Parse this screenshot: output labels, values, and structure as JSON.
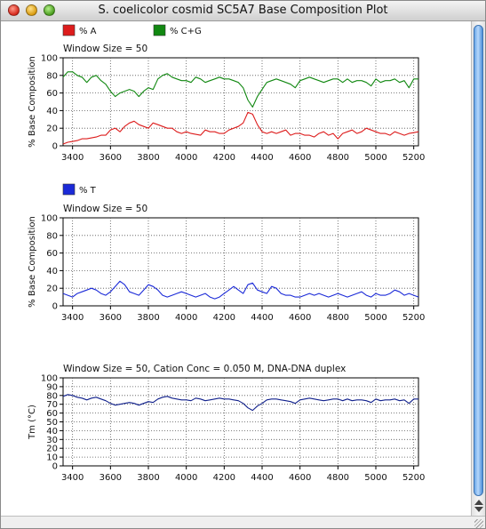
{
  "window": {
    "title": "S. coelicolor cosmid SC5A7 Base Composition Plot"
  },
  "colors": {
    "a": "#dd1c1c",
    "cg": "#118811",
    "t": "#1b2ad8",
    "tm": "#10208c"
  },
  "chart_data": [
    {
      "type": "line",
      "title": "Window Size = 50",
      "ylabel": "% Base Composition",
      "xlim": [
        3350,
        5225
      ],
      "ylim": [
        0,
        100
      ],
      "xticks": [
        3400,
        3600,
        3800,
        4000,
        4200,
        4400,
        4600,
        4800,
        5000,
        5200
      ],
      "yticks": [
        0,
        20,
        40,
        60,
        80,
        100
      ],
      "grid": true,
      "legend": [
        {
          "label": "% A",
          "color": "#dd1c1c"
        },
        {
          "label": "% C+G",
          "color": "#118811"
        }
      ],
      "x": [
        3350,
        3375,
        3400,
        3425,
        3450,
        3475,
        3500,
        3525,
        3550,
        3575,
        3600,
        3625,
        3650,
        3675,
        3700,
        3725,
        3750,
        3775,
        3800,
        3825,
        3850,
        3875,
        3900,
        3925,
        3950,
        3975,
        4000,
        4025,
        4050,
        4075,
        4100,
        4125,
        4150,
        4175,
        4200,
        4225,
        4250,
        4275,
        4300,
        4325,
        4350,
        4375,
        4400,
        4425,
        4450,
        4475,
        4500,
        4525,
        4550,
        4575,
        4600,
        4625,
        4650,
        4675,
        4700,
        4725,
        4750,
        4775,
        4800,
        4825,
        4850,
        4875,
        4900,
        4925,
        4950,
        4975,
        5000,
        5025,
        5050,
        5075,
        5100,
        5125,
        5150,
        5175,
        5200,
        5225
      ],
      "series": [
        {
          "name": "% A",
          "color": "#dd1c1c",
          "values": [
            2,
            4,
            5,
            6,
            8,
            8,
            9,
            10,
            12,
            12,
            18,
            20,
            16,
            22,
            26,
            28,
            24,
            22,
            20,
            26,
            24,
            22,
            20,
            20,
            16,
            14,
            16,
            14,
            13,
            12,
            18,
            16,
            16,
            14,
            14,
            18,
            20,
            22,
            26,
            38,
            36,
            24,
            16,
            14,
            16,
            14,
            16,
            18,
            12,
            14,
            14,
            12,
            12,
            10,
            14,
            16,
            12,
            14,
            8,
            14,
            16,
            18,
            14,
            16,
            20,
            18,
            16,
            14,
            14,
            12,
            16,
            14,
            12,
            14,
            15,
            16
          ]
        },
        {
          "name": "% C+G",
          "color": "#118811",
          "values": [
            78,
            84,
            84,
            80,
            78,
            72,
            78,
            80,
            74,
            70,
            62,
            56,
            60,
            62,
            64,
            62,
            56,
            62,
            66,
            64,
            76,
            80,
            82,
            78,
            76,
            74,
            74,
            72,
            78,
            76,
            72,
            74,
            76,
            78,
            76,
            76,
            74,
            72,
            66,
            52,
            44,
            56,
            64,
            72,
            74,
            76,
            74,
            72,
            70,
            66,
            74,
            76,
            78,
            76,
            74,
            72,
            74,
            76,
            76,
            72,
            76,
            72,
            74,
            74,
            72,
            68,
            76,
            72,
            74,
            74,
            76,
            72,
            74,
            66,
            76,
            76
          ]
        }
      ]
    },
    {
      "type": "line",
      "title": "Window Size = 50",
      "ylabel": "% Base Composition",
      "xlim": [
        3350,
        5225
      ],
      "ylim": [
        0,
        100
      ],
      "xticks": [
        3400,
        3600,
        3800,
        4000,
        4200,
        4400,
        4600,
        4800,
        5000,
        5200
      ],
      "yticks": [
        0,
        20,
        40,
        60,
        80,
        100
      ],
      "grid": true,
      "legend": [
        {
          "label": "% T",
          "color": "#1b2ad8"
        }
      ],
      "x": [
        3350,
        3375,
        3400,
        3425,
        3450,
        3475,
        3500,
        3525,
        3550,
        3575,
        3600,
        3625,
        3650,
        3675,
        3700,
        3725,
        3750,
        3775,
        3800,
        3825,
        3850,
        3875,
        3900,
        3925,
        3950,
        3975,
        4000,
        4025,
        4050,
        4075,
        4100,
        4125,
        4150,
        4175,
        4200,
        4225,
        4250,
        4275,
        4300,
        4325,
        4350,
        4375,
        4400,
        4425,
        4450,
        4475,
        4500,
        4525,
        4550,
        4575,
        4600,
        4625,
        4650,
        4675,
        4700,
        4725,
        4750,
        4775,
        4800,
        4825,
        4850,
        4875,
        4900,
        4925,
        4950,
        4975,
        5000,
        5025,
        5050,
        5075,
        5100,
        5125,
        5150,
        5175,
        5200,
        5225
      ],
      "series": [
        {
          "name": "% T",
          "color": "#1b2ad8",
          "values": [
            14,
            12,
            10,
            14,
            16,
            18,
            20,
            18,
            14,
            12,
            16,
            22,
            28,
            24,
            16,
            14,
            12,
            18,
            24,
            22,
            18,
            12,
            10,
            12,
            14,
            16,
            14,
            12,
            10,
            12,
            14,
            10,
            8,
            10,
            14,
            18,
            22,
            18,
            14,
            24,
            26,
            18,
            16,
            14,
            22,
            20,
            14,
            12,
            12,
            10,
            10,
            12,
            14,
            12,
            14,
            12,
            10,
            12,
            14,
            12,
            10,
            12,
            14,
            16,
            12,
            10,
            14,
            12,
            12,
            14,
            18,
            16,
            12,
            14,
            12,
            10
          ]
        }
      ]
    },
    {
      "type": "line",
      "title": "Window Size = 50, Cation Conc = 0.050 M, DNA-DNA duplex",
      "ylabel": "Tm (°C)",
      "xlim": [
        3350,
        5225
      ],
      "ylim": [
        0,
        100
      ],
      "xticks": [
        3400,
        3600,
        3800,
        4000,
        4200,
        4400,
        4600,
        4800,
        5000,
        5200
      ],
      "yticks": [
        0,
        10,
        20,
        30,
        40,
        50,
        60,
        70,
        80,
        90,
        100
      ],
      "grid": true,
      "legend": [],
      "x": [
        3350,
        3375,
        3400,
        3425,
        3450,
        3475,
        3500,
        3525,
        3550,
        3575,
        3600,
        3625,
        3650,
        3675,
        3700,
        3725,
        3750,
        3775,
        3800,
        3825,
        3850,
        3875,
        3900,
        3925,
        3950,
        3975,
        4000,
        4025,
        4050,
        4075,
        4100,
        4125,
        4150,
        4175,
        4200,
        4225,
        4250,
        4275,
        4300,
        4325,
        4350,
        4375,
        4400,
        4425,
        4450,
        4475,
        4500,
        4525,
        4550,
        4575,
        4600,
        4625,
        4650,
        4675,
        4700,
        4725,
        4750,
        4775,
        4800,
        4825,
        4850,
        4875,
        4900,
        4925,
        4950,
        4975,
        5000,
        5025,
        5050,
        5075,
        5100,
        5125,
        5150,
        5175,
        5200,
        5225
      ],
      "series": [
        {
          "name": "Tm",
          "color": "#10208c",
          "values": [
            79,
            81,
            80,
            78,
            77,
            75,
            77,
            78,
            76,
            74,
            71,
            69,
            70,
            71,
            72,
            71,
            69,
            71,
            73,
            72,
            76,
            78,
            79,
            77,
            76,
            75,
            75,
            74,
            77,
            76,
            74,
            75,
            76,
            77,
            76,
            76,
            75,
            74,
            71,
            66,
            63,
            68,
            71,
            75,
            76,
            76,
            75,
            74,
            73,
            71,
            75,
            76,
            77,
            76,
            75,
            74,
            75,
            76,
            76,
            74,
            76,
            74,
            75,
            75,
            74,
            72,
            76,
            74,
            75,
            75,
            76,
            74,
            75,
            71,
            76,
            76
          ]
        }
      ]
    }
  ]
}
